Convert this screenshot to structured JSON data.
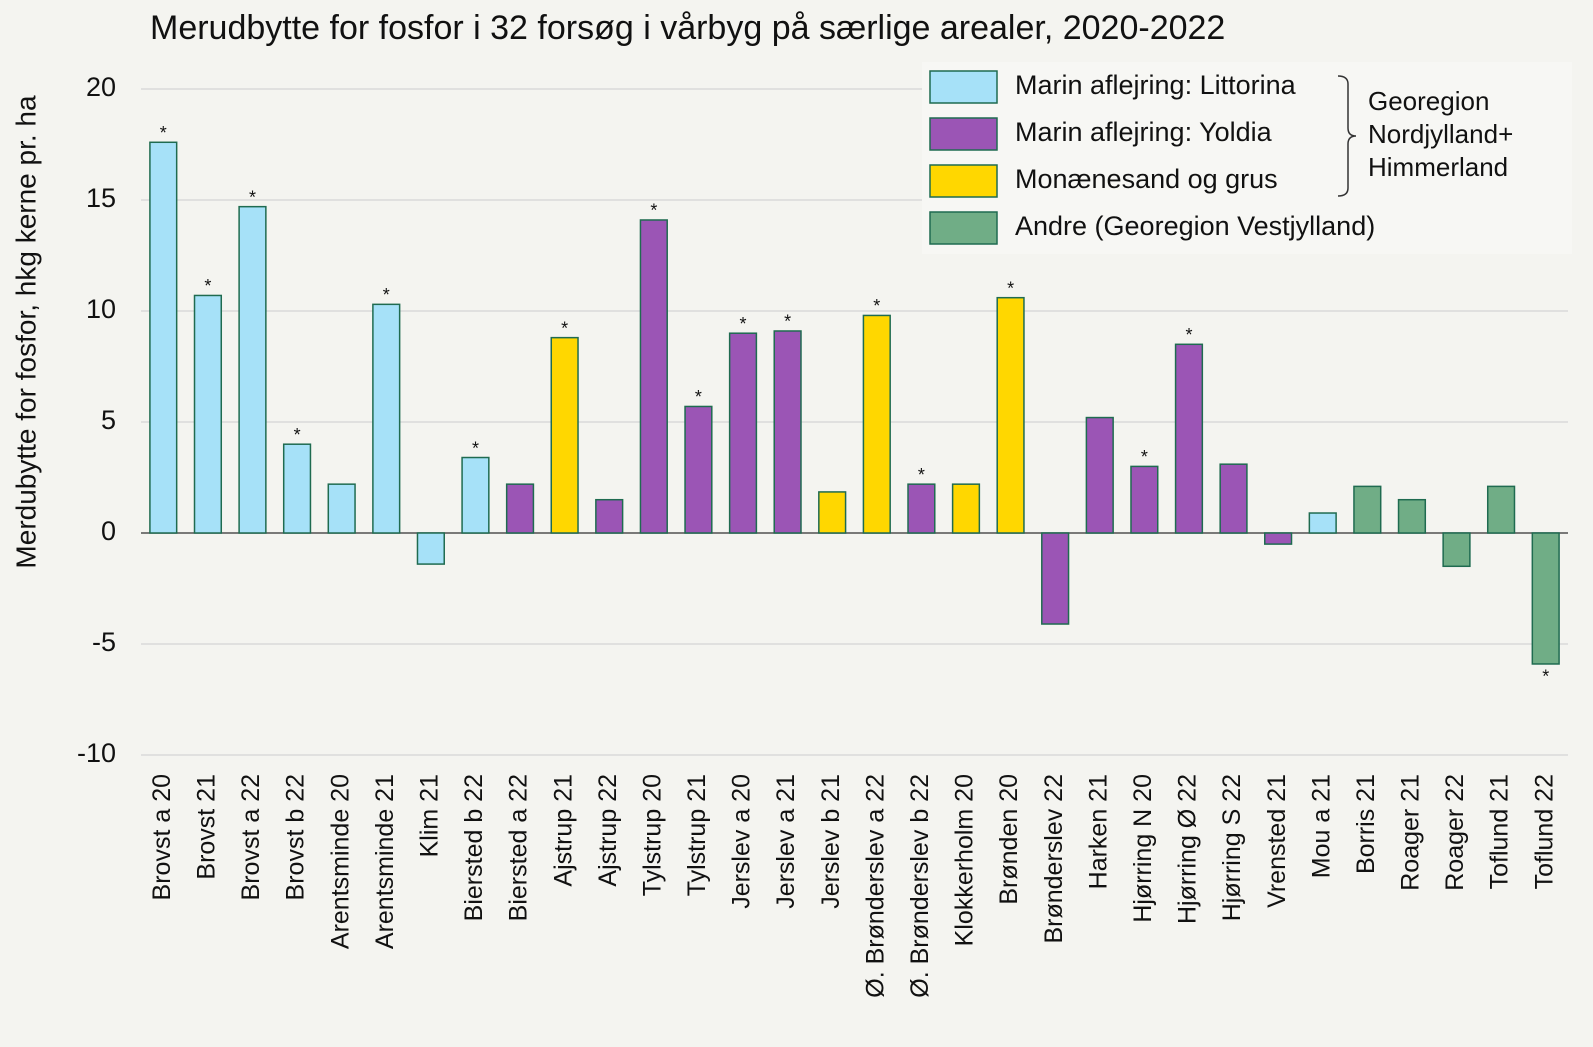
{
  "chart_data": {
    "type": "bar",
    "title": "Merudbytte for fosfor i 32 forsøg i vårbyg på særlige arealer, 2020-2022",
    "y_label": "Merdubytte for fosfor, hkg kerne pr. ha",
    "categories": [
      "Brovst a 20",
      "Brovst 21",
      "Brovst a 22",
      "Brovst b 22",
      "Arentsminde 20",
      "Arentsminde 21",
      "Klim 21",
      "Biersted b 22",
      "Biersted a 22",
      "Ajstrup 21",
      "Ajstrup 22",
      "Tylstrup 20",
      "Tylstrup 21",
      "Jerslev a 20",
      "Jerslev a 21",
      "Jerslev b 21",
      "Ø. Brønderslev a 22",
      "Ø. Brønderslev b 22",
      "Klokkerholm 20",
      "Brønden 20",
      "Brønderslev 22",
      "Harken 21",
      "Hjørring N 20",
      "Hjørring Ø 22",
      "Hjørring S 22",
      "Vrensted 21",
      "Mou a 21",
      "Borris 21",
      "Roager 21",
      "Roager 22",
      "Toflund 21",
      "Toflund 22"
    ],
    "series": [
      {
        "name": "Marin aflejring: Littorina",
        "color": "#a6e1f8",
        "values": [
          17.6,
          10.7,
          14.7,
          4.0,
          2.2,
          10.3,
          -1.4,
          3.4,
          null,
          null,
          null,
          null,
          null,
          null,
          null,
          null,
          null,
          null,
          null,
          null,
          null,
          null,
          null,
          null,
          null,
          null,
          0.9,
          null,
          null,
          null,
          null,
          null
        ]
      },
      {
        "name": "Marin aflejring: Yoldia",
        "color": "#9b55b5",
        "values": [
          null,
          null,
          null,
          null,
          null,
          null,
          null,
          null,
          2.2,
          null,
          1.5,
          14.1,
          5.7,
          9.0,
          9.1,
          null,
          null,
          2.2,
          null,
          null,
          -4.1,
          5.2,
          3.0,
          8.5,
          3.1,
          -0.5,
          null,
          null,
          null,
          null,
          null,
          null
        ]
      },
      {
        "name": "Monænesand og grus",
        "color": "#ffd700",
        "values": [
          null,
          null,
          null,
          null,
          null,
          null,
          null,
          null,
          null,
          8.8,
          null,
          null,
          null,
          null,
          null,
          1.85,
          9.8,
          null,
          2.2,
          10.6,
          null,
          null,
          null,
          null,
          null,
          null,
          null,
          null,
          null,
          null,
          null,
          null
        ]
      },
      {
        "name": "Andre (Georegion Vestjylland)",
        "color": "#70ad86",
        "values": [
          null,
          null,
          null,
          null,
          null,
          null,
          null,
          null,
          null,
          null,
          null,
          null,
          null,
          null,
          null,
          null,
          null,
          null,
          null,
          null,
          null,
          null,
          null,
          null,
          null,
          null,
          null,
          2.1,
          1.5,
          -1.5,
          2.1,
          -5.9
        ]
      }
    ],
    "significance": [
      "*",
      "*",
      "*",
      "*",
      null,
      "*",
      null,
      "*",
      null,
      "*",
      null,
      "*",
      "*",
      "*",
      "*",
      null,
      "*",
      "*",
      null,
      "*",
      null,
      null,
      "*",
      "*",
      null,
      null,
      null,
      null,
      null,
      null,
      null,
      "*"
    ],
    "bracket_label": [
      "Georegion",
      "Nordjylland+",
      "Himmerland"
    ],
    "ylim": [
      -10,
      20
    ],
    "yticks": [
      -10,
      -5,
      0,
      5,
      10,
      15,
      20
    ],
    "grid": true,
    "legend": "upper right"
  }
}
